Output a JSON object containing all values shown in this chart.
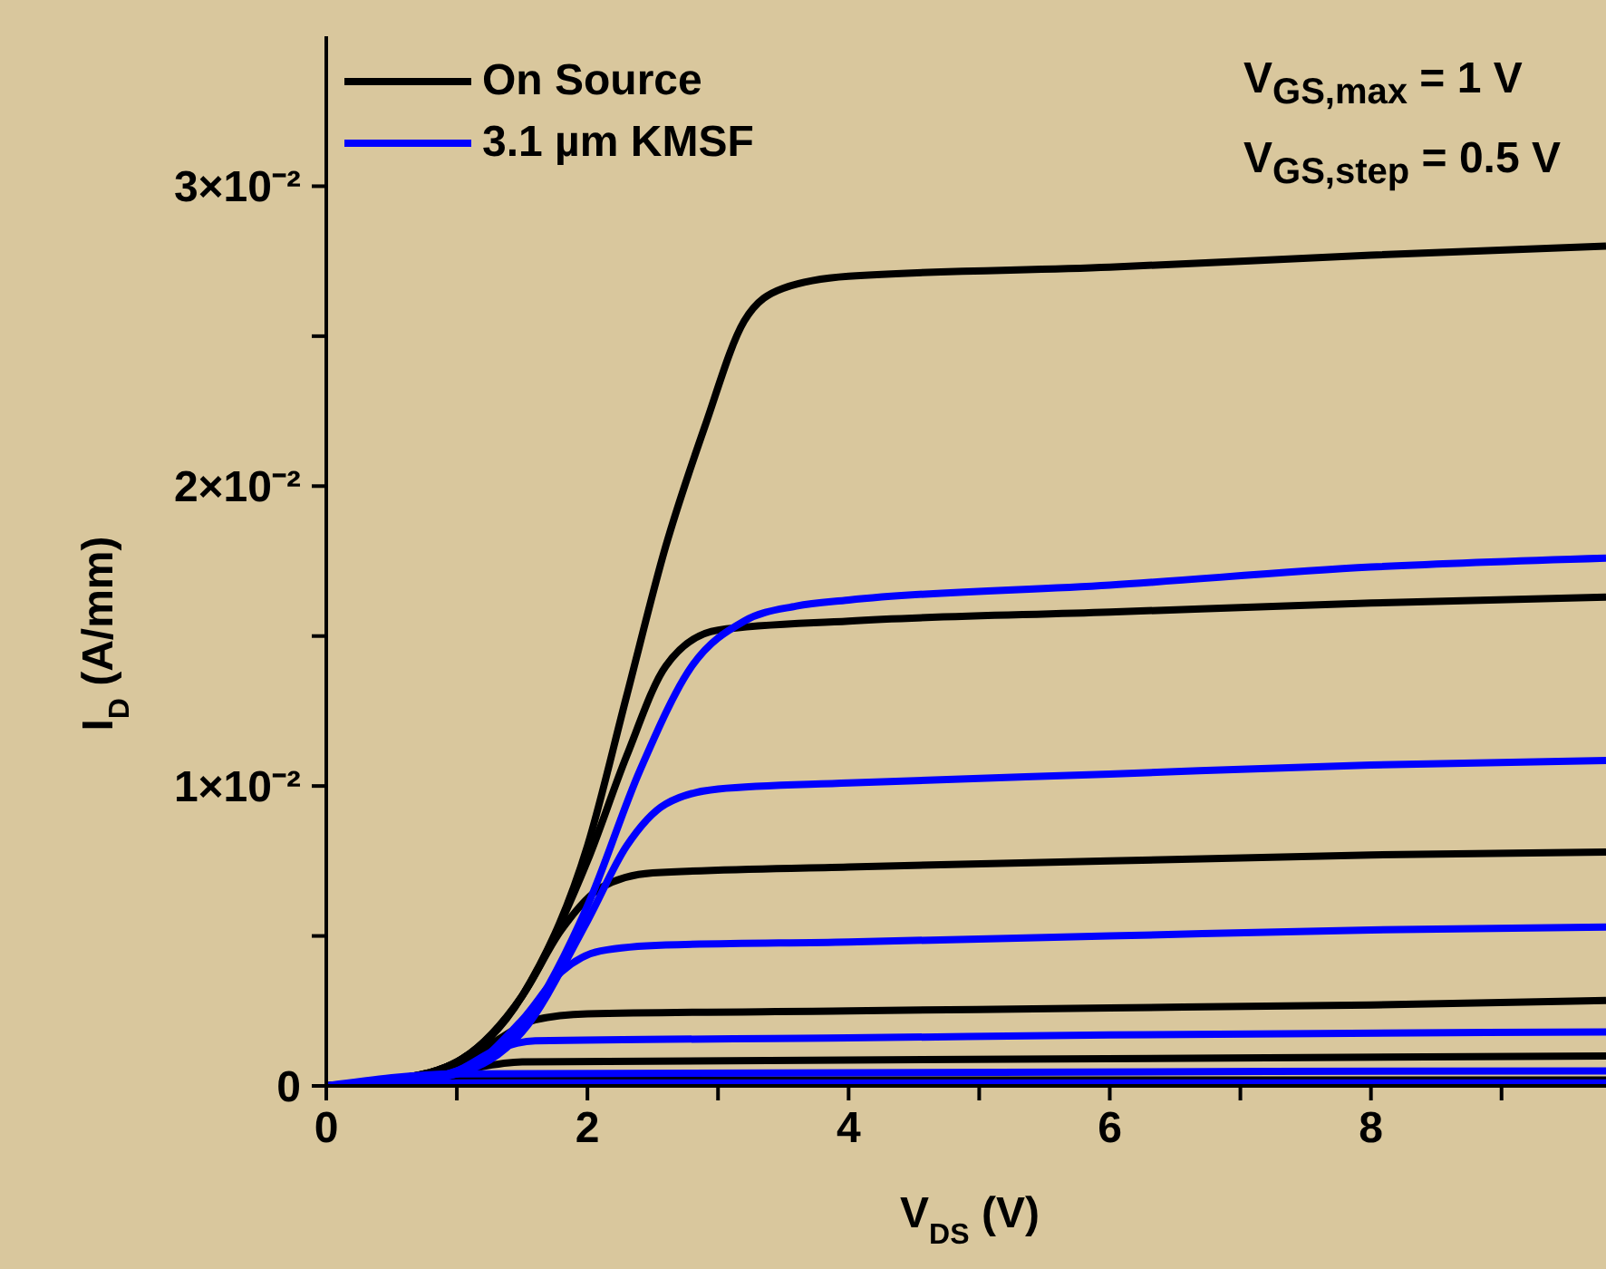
{
  "chart_data": {
    "type": "line",
    "xlabel": "V$_{DS}$ (V)",
    "ylabel": "I$_{D}$ (A/mm)",
    "annotations": [
      "V$_{GS,max}$ = 1 V",
      "V$_{GS,step}$ = 0.5 V"
    ],
    "xlim": [
      0,
      9.8
    ],
    "ylim": [
      0,
      0.035
    ],
    "xticks": [
      0,
      {
        "value": 1,
        "label": null
      },
      2,
      {
        "value": 3,
        "label": null
      },
      4,
      {
        "value": 5,
        "label": null
      },
      6,
      {
        "value": 7,
        "label": null
      },
      8,
      {
        "value": 9,
        "label": null
      }
    ],
    "yticks": [
      {
        "value": 0,
        "label": "0"
      },
      {
        "value": 0.005,
        "label": null
      },
      {
        "value": 0.01,
        "label": "1×10⁻²"
      },
      {
        "value": 0.015,
        "label": null
      },
      {
        "value": 0.02,
        "label": "2×10⁻²"
      },
      {
        "value": 0.025,
        "label": null
      },
      {
        "value": 0.03,
        "label": "3×10⁻²"
      }
    ],
    "legend": "top left",
    "marker": "none",
    "line_style": "solid",
    "series": [
      {
        "name": "On Source",
        "color": "#000000",
        "x": [
          0,
          0.5,
          1,
          1.5,
          2,
          2.3,
          2.6,
          2.9,
          3.2,
          3.5,
          4,
          6,
          8,
          9.8
        ],
        "values": [
          0,
          0.0002,
          0.0008,
          0.003,
          0.008,
          0.013,
          0.018,
          0.022,
          0.0255,
          0.0266,
          0.027,
          0.0273,
          0.0277,
          0.028
        ]
      },
      {
        "color": "#000000",
        "x": [
          0,
          0.5,
          1,
          1.5,
          2,
          2.3,
          2.6,
          3,
          4,
          6,
          8,
          9.8
        ],
        "values": [
          0,
          0.0002,
          0.0008,
          0.003,
          0.0075,
          0.011,
          0.014,
          0.0152,
          0.0155,
          0.0158,
          0.0161,
          0.0163
        ]
      },
      {
        "color": "#000000",
        "x": [
          0,
          0.5,
          1,
          1.5,
          1.8,
          2.1,
          2.5,
          4,
          6,
          8,
          9.8
        ],
        "values": [
          0,
          0.0002,
          0.0008,
          0.003,
          0.0052,
          0.0066,
          0.0071,
          0.0073,
          0.0075,
          0.0077,
          0.0078
        ]
      },
      {
        "color": "#000000",
        "x": [
          0,
          0.5,
          1,
          1.3,
          1.6,
          2,
          4,
          6,
          8,
          9.8
        ],
        "values": [
          0,
          0.0002,
          0.0007,
          0.0015,
          0.0022,
          0.0024,
          0.0025,
          0.0026,
          0.0027,
          0.00285
        ]
      },
      {
        "color": "#000000",
        "x": [
          0,
          0.5,
          1,
          1.5,
          9.8
        ],
        "values": [
          0,
          0.0002,
          0.0005,
          0.0008,
          0.001
        ]
      },
      {
        "color": "#000000",
        "x": [
          0,
          1,
          9.8
        ],
        "values": [
          0,
          0.0002,
          0.0002
        ]
      },
      {
        "name": "3.1 µm KMSF",
        "color": "#0000ff",
        "x": [
          0,
          0.5,
          1,
          1.5,
          2,
          2.4,
          2.8,
          3.2,
          3.6,
          4,
          6,
          8,
          9.8
        ],
        "values": [
          0,
          0.0001,
          0.0005,
          0.002,
          0.006,
          0.0105,
          0.014,
          0.0155,
          0.016,
          0.0162,
          0.0167,
          0.0173,
          0.0176
        ]
      },
      {
        "color": "#0000ff",
        "x": [
          0,
          0.5,
          1,
          1.5,
          2,
          2.3,
          2.6,
          3,
          4,
          6,
          8,
          9.8
        ],
        "values": [
          0,
          0.0001,
          0.0004,
          0.0018,
          0.0055,
          0.008,
          0.0094,
          0.0099,
          0.0101,
          0.0104,
          0.0107,
          0.01085
        ]
      },
      {
        "color": "#0000ff",
        "x": [
          0,
          0.5,
          1,
          1.5,
          1.8,
          2.1,
          2.6,
          4,
          6,
          8,
          9.8
        ],
        "values": [
          0,
          0.0001,
          0.0004,
          0.0022,
          0.0038,
          0.0045,
          0.0047,
          0.0048,
          0.005,
          0.0052,
          0.0053
        ]
      },
      {
        "color": "#0000ff",
        "x": [
          0,
          0.5,
          1,
          1.3,
          1.6,
          4,
          6,
          9.8
        ],
        "values": [
          0,
          0.0001,
          0.0005,
          0.0012,
          0.0015,
          0.0016,
          0.0017,
          0.0018
        ]
      },
      {
        "color": "#0000ff",
        "x": [
          0,
          1,
          9.8
        ],
        "values": [
          0,
          0.0004,
          0.0005
        ]
      },
      {
        "color": "#0000ff",
        "x": [
          0,
          1,
          9.8
        ],
        "values": [
          0,
          0.0001,
          0.0001
        ]
      }
    ]
  }
}
